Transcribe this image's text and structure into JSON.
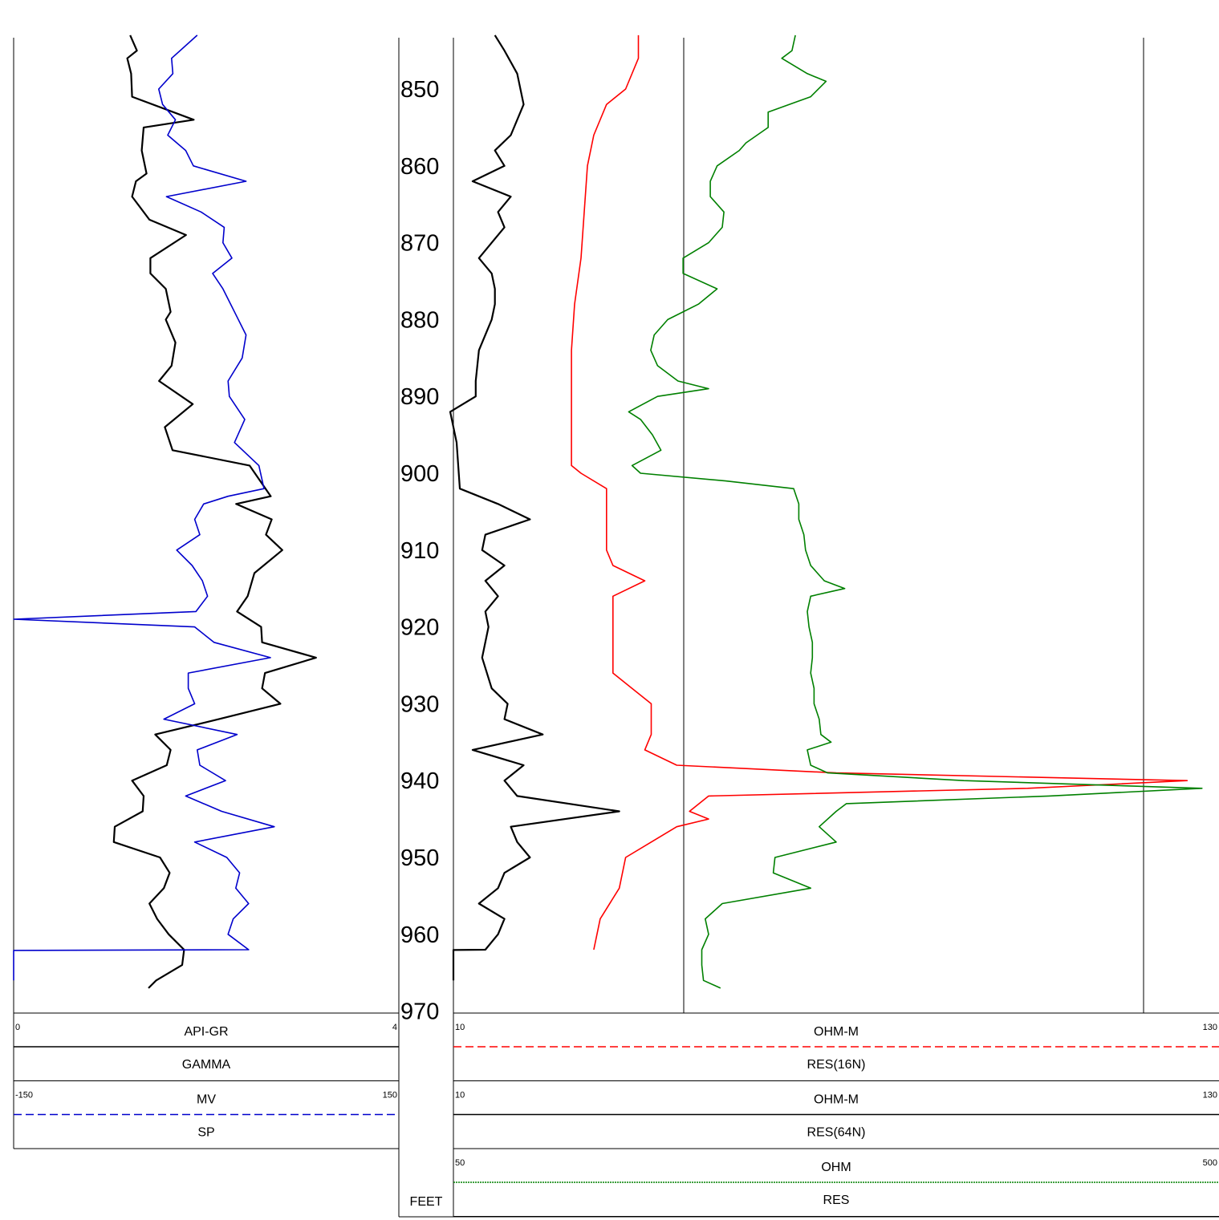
{
  "chart_data": {
    "type": "line",
    "depth_unit": "FEET",
    "depth_range": [
      843,
      970
    ],
    "depth_ticks": [
      850,
      860,
      870,
      880,
      890,
      900,
      910,
      920,
      930,
      940,
      950,
      960,
      970
    ],
    "tracks": [
      {
        "headers": [
          {
            "unit": "API-GR",
            "name": "GAMMA",
            "min": "0",
            "max": "4",
            "color": "#000000",
            "dash": "solid"
          },
          {
            "unit": "MV",
            "name": "SP",
            "min": "-150",
            "max": "150",
            "color": "#0000cc",
            "dash": "dashed"
          }
        ]
      },
      {
        "headers": [
          {
            "unit": "OHM-M",
            "name": "RES(16N)",
            "min": "10",
            "max": "130",
            "color": "#ff0000",
            "dash": "dashed"
          },
          {
            "unit": "OHM-M",
            "name": "RES(64N)",
            "min": "10",
            "max": "130",
            "color": "#000000",
            "dash": "solid"
          },
          {
            "unit": "OHM",
            "name": "RES",
            "min": "50",
            "max": "500",
            "color": "#008000",
            "dash": "dotted"
          }
        ]
      }
    ],
    "series": [
      {
        "name": "GAMMA",
        "track": 0,
        "color": "#000000",
        "scale": [
          0,
          4
        ],
        "points": [
          [
            843,
            1.21
          ],
          [
            845,
            1.28
          ],
          [
            846,
            1.18
          ],
          [
            848,
            1.22
          ],
          [
            851,
            1.23
          ],
          [
            854,
            1.87
          ],
          [
            855,
            1.35
          ],
          [
            858,
            1.33
          ],
          [
            861,
            1.38
          ],
          [
            862,
            1.27
          ],
          [
            864,
            1.23
          ],
          [
            867,
            1.41
          ],
          [
            869,
            1.79
          ],
          [
            872,
            1.42
          ],
          [
            874,
            1.42
          ],
          [
            876,
            1.58
          ],
          [
            879,
            1.63
          ],
          [
            880,
            1.58
          ],
          [
            883,
            1.68
          ],
          [
            886,
            1.64
          ],
          [
            888,
            1.51
          ],
          [
            891,
            1.86
          ],
          [
            894,
            1.57
          ],
          [
            897,
            1.65
          ],
          [
            899,
            2.45
          ],
          [
            903,
            2.67
          ],
          [
            904,
            2.31
          ],
          [
            906,
            2.68
          ],
          [
            908,
            2.62
          ],
          [
            910,
            2.79
          ],
          [
            913,
            2.5
          ],
          [
            916,
            2.43
          ],
          [
            918,
            2.32
          ],
          [
            920,
            2.57
          ],
          [
            922,
            2.58
          ],
          [
            924,
            3.14
          ],
          [
            926,
            2.61
          ],
          [
            928,
            2.58
          ],
          [
            930,
            2.77
          ],
          [
            932,
            2.13
          ],
          [
            934,
            1.47
          ],
          [
            936,
            1.63
          ],
          [
            938,
            1.59
          ],
          [
            940,
            1.23
          ],
          [
            942,
            1.35
          ],
          [
            944,
            1.34
          ],
          [
            946,
            1.05
          ],
          [
            948,
            1.04
          ],
          [
            950,
            1.52
          ],
          [
            952,
            1.62
          ],
          [
            954,
            1.56
          ],
          [
            956,
            1.41
          ],
          [
            958,
            1.49
          ],
          [
            960,
            1.61
          ],
          [
            962,
            1.77
          ],
          [
            964,
            1.75
          ],
          [
            966,
            1.48
          ],
          [
            967,
            1.4
          ]
        ]
      },
      {
        "name": "SP",
        "track": 0,
        "color": "#0000cc",
        "scale": [
          -150,
          150
        ],
        "points": [
          [
            843,
            -7
          ],
          [
            846,
            -27
          ],
          [
            848,
            -26
          ],
          [
            850,
            -37
          ],
          [
            852,
            -34
          ],
          [
            854,
            -24
          ],
          [
            856,
            -30
          ],
          [
            858,
            -16
          ],
          [
            860,
            -10
          ],
          [
            862,
            31
          ],
          [
            864,
            -31
          ],
          [
            866,
            -4
          ],
          [
            868,
            14
          ],
          [
            870,
            13
          ],
          [
            872,
            20
          ],
          [
            874,
            5
          ],
          [
            876,
            13
          ],
          [
            879,
            22
          ],
          [
            882,
            31
          ],
          [
            885,
            28
          ],
          [
            888,
            17
          ],
          [
            890,
            18
          ],
          [
            893,
            30
          ],
          [
            896,
            22
          ],
          [
            899,
            41
          ],
          [
            902,
            45
          ],
          [
            903,
            17
          ],
          [
            904,
            -2
          ],
          [
            906,
            -9
          ],
          [
            908,
            -5
          ],
          [
            910,
            -23
          ],
          [
            912,
            -11
          ],
          [
            914,
            -3
          ],
          [
            916,
            1
          ],
          [
            918,
            -8
          ],
          [
            919,
            -150
          ],
          [
            920,
            -9
          ],
          [
            922,
            6
          ],
          [
            924,
            50
          ],
          [
            926,
            -14
          ],
          [
            928,
            -14
          ],
          [
            930,
            -9
          ],
          [
            932,
            -33
          ],
          [
            934,
            24
          ],
          [
            936,
            -7
          ],
          [
            938,
            -5
          ],
          [
            940,
            15
          ],
          [
            942,
            -16
          ],
          [
            944,
            12
          ],
          [
            946,
            53
          ],
          [
            948,
            -9
          ],
          [
            950,
            16
          ],
          [
            952,
            26
          ],
          [
            954,
            23
          ],
          [
            956,
            33
          ],
          [
            958,
            21
          ],
          [
            960,
            17
          ],
          [
            962,
            33
          ],
          [
            962.1,
            -150
          ],
          [
            963,
            -150
          ],
          [
            966,
            -150
          ]
        ]
      },
      {
        "name": "RES(16N)",
        "track": 1,
        "color": "#ff0000",
        "scale": [
          10,
          130
        ],
        "points": [
          [
            843,
            39
          ],
          [
            846,
            39
          ],
          [
            850,
            37
          ],
          [
            852,
            34
          ],
          [
            856,
            32
          ],
          [
            860,
            31
          ],
          [
            866,
            30.5
          ],
          [
            872,
            30
          ],
          [
            878,
            29
          ],
          [
            884,
            28.5
          ],
          [
            890,
            28.5
          ],
          [
            896,
            28.5
          ],
          [
            899,
            28.5
          ],
          [
            900,
            30
          ],
          [
            902,
            34
          ],
          [
            906,
            34
          ],
          [
            910,
            34
          ],
          [
            912,
            35
          ],
          [
            914,
            40
          ],
          [
            916,
            35
          ],
          [
            920,
            35
          ],
          [
            926,
            35
          ],
          [
            928,
            38
          ],
          [
            930,
            41
          ],
          [
            934,
            41
          ],
          [
            936,
            40
          ],
          [
            938,
            45
          ],
          [
            939,
            70
          ],
          [
            940,
            125
          ],
          [
            941,
            100
          ],
          [
            942,
            50
          ],
          [
            944,
            47
          ],
          [
            945,
            50
          ],
          [
            946,
            45
          ],
          [
            948,
            41
          ],
          [
            950,
            37
          ],
          [
            954,
            36
          ],
          [
            958,
            33
          ],
          [
            962,
            32
          ]
        ]
      },
      {
        "name": "RES(64N)",
        "track": 1,
        "color": "#000000",
        "scale": [
          10,
          130
        ],
        "points": [
          [
            843,
            16.5
          ],
          [
            845,
            18
          ],
          [
            848,
            20
          ],
          [
            852,
            21
          ],
          [
            856,
            19
          ],
          [
            858,
            16.5
          ],
          [
            860,
            18
          ],
          [
            862,
            13
          ],
          [
            864,
            19
          ],
          [
            866,
            17
          ],
          [
            868,
            18
          ],
          [
            870,
            16
          ],
          [
            872,
            14
          ],
          [
            874,
            16
          ],
          [
            876,
            16.5
          ],
          [
            878,
            16.5
          ],
          [
            880,
            16
          ],
          [
            884,
            14
          ],
          [
            888,
            13.5
          ],
          [
            890,
            13.5
          ],
          [
            892,
            9.5
          ],
          [
            896,
            10.5
          ],
          [
            902,
            11
          ],
          [
            904,
            17
          ],
          [
            906,
            22
          ],
          [
            908,
            15
          ],
          [
            910,
            14.5
          ],
          [
            912,
            18
          ],
          [
            914,
            15
          ],
          [
            916,
            17
          ],
          [
            918,
            15
          ],
          [
            920,
            15.5
          ],
          [
            924,
            14.5
          ],
          [
            928,
            16
          ],
          [
            930,
            18.5
          ],
          [
            932,
            18
          ],
          [
            934,
            24
          ],
          [
            936,
            13
          ],
          [
            938,
            21
          ],
          [
            940,
            18
          ],
          [
            942,
            20
          ],
          [
            944,
            36
          ],
          [
            946,
            19
          ],
          [
            948,
            20
          ],
          [
            950,
            22
          ],
          [
            952,
            18
          ],
          [
            954,
            17
          ],
          [
            956,
            14
          ],
          [
            958,
            18
          ],
          [
            960,
            17
          ],
          [
            962,
            15
          ],
          [
            962.05,
            10
          ],
          [
            966,
            10
          ]
        ]
      },
      {
        "name": "RES",
        "track": 1,
        "color": "#008000",
        "scale": [
          50,
          500
        ],
        "points": [
          [
            843,
            251
          ],
          [
            845,
            249
          ],
          [
            846,
            243
          ],
          [
            848,
            258
          ],
          [
            849,
            269
          ],
          [
            851,
            260
          ],
          [
            853,
            235
          ],
          [
            855,
            235
          ],
          [
            857,
            222
          ],
          [
            858,
            218
          ],
          [
            860,
            205
          ],
          [
            862,
            201
          ],
          [
            864,
            201
          ],
          [
            866,
            209
          ],
          [
            868,
            208
          ],
          [
            870,
            200
          ],
          [
            872,
            185
          ],
          [
            874,
            185
          ],
          [
            876,
            205
          ],
          [
            878,
            194
          ],
          [
            880,
            176
          ],
          [
            882,
            168
          ],
          [
            884,
            166
          ],
          [
            886,
            170
          ],
          [
            888,
            182
          ],
          [
            889,
            200
          ],
          [
            890,
            170
          ],
          [
            892,
            153
          ],
          [
            893,
            160
          ],
          [
            895,
            167
          ],
          [
            897,
            172
          ],
          [
            899,
            155
          ],
          [
            900,
            160
          ],
          [
            901,
            210
          ],
          [
            902,
            250
          ],
          [
            904,
            253
          ],
          [
            906,
            253
          ],
          [
            908,
            256
          ],
          [
            910,
            257
          ],
          [
            912,
            260
          ],
          [
            914,
            268
          ],
          [
            915,
            280
          ],
          [
            916,
            260
          ],
          [
            918,
            258
          ],
          [
            920,
            259
          ],
          [
            922,
            261
          ],
          [
            924,
            261
          ],
          [
            926,
            260
          ],
          [
            928,
            262
          ],
          [
            930,
            262
          ],
          [
            932,
            265
          ],
          [
            934,
            266
          ],
          [
            935,
            272
          ],
          [
            936,
            258
          ],
          [
            938,
            260
          ],
          [
            939,
            270
          ],
          [
            940,
            350
          ],
          [
            941,
            490
          ],
          [
            942,
            400
          ],
          [
            943,
            281
          ],
          [
            944,
            275
          ],
          [
            946,
            265
          ],
          [
            948,
            275
          ],
          [
            950,
            239
          ],
          [
            952,
            238
          ],
          [
            954,
            260
          ],
          [
            956,
            208
          ],
          [
            958,
            198
          ],
          [
            960,
            200
          ],
          [
            962,
            196
          ],
          [
            964,
            196
          ],
          [
            966,
            197
          ],
          [
            967,
            207
          ]
        ]
      }
    ]
  }
}
